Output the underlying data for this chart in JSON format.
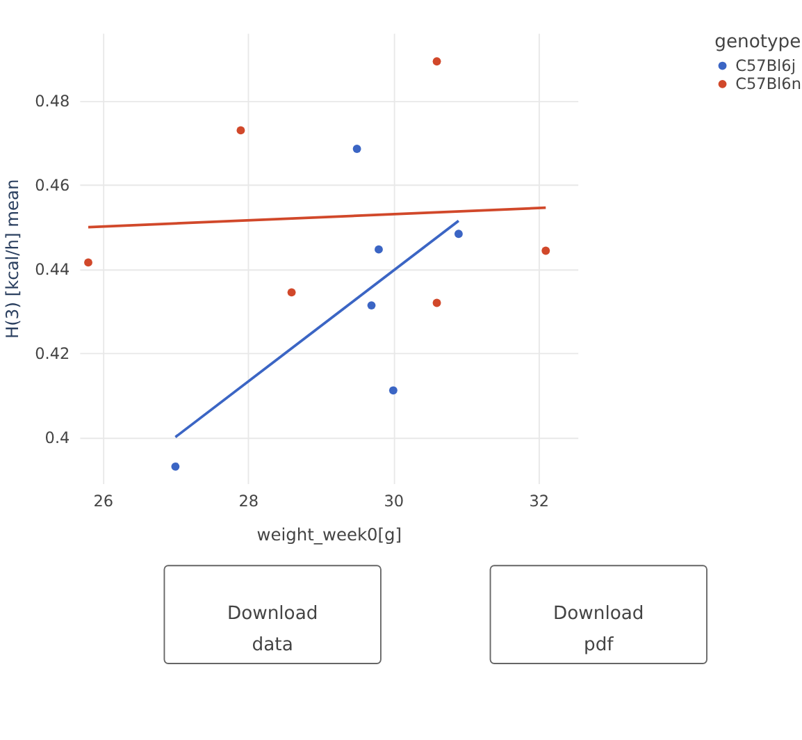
{
  "chart_data": {
    "type": "scatter",
    "xlabel": "weight_week0[g]",
    "ylabel": "H(3) [kcal/h] mean",
    "legend_title": "genotype",
    "legend": "top right",
    "grid": true,
    "xlim": [
      25.68,
      32.54
    ],
    "ylim": [
      0.389,
      0.496
    ],
    "xticks": [
      26,
      28,
      30,
      32
    ],
    "yticks": [
      {
        "value": 0.4,
        "label": "0.4"
      },
      0.42,
      0.44,
      0.46,
      0.48
    ],
    "series": [
      {
        "name": "C57Bl6j",
        "color": "#3b65c4",
        "marker": "circle",
        "x": [
          27,
          29.5,
          29.8,
          29.7,
          30.0,
          30.9
        ],
        "values": [
          0.393,
          0.4685,
          0.4446,
          0.4313,
          0.4111,
          0.4483
        ]
      },
      {
        "name": "C57Bl6n",
        "color": "#d1482a",
        "marker": "circle",
        "x": [
          25.8,
          27.9,
          28.6,
          30.6,
          30.6,
          32.1
        ],
        "values": [
          0.4415,
          0.4729,
          0.4344,
          0.4893,
          0.4319,
          0.4443
        ]
      },
      {
        "type": "line",
        "marker": "none",
        "color": "#3b65c4",
        "x": [
          27,
          30.9
        ],
        "values": [
          0.4,
          0.4514
        ]
      },
      {
        "type": "line",
        "marker": "none",
        "color": "#d1482a",
        "x": [
          25.8,
          32.1
        ],
        "values": [
          0.4499,
          0.4545
        ]
      }
    ],
    "annotations": [
      "Download data",
      "Download pdf"
    ]
  }
}
